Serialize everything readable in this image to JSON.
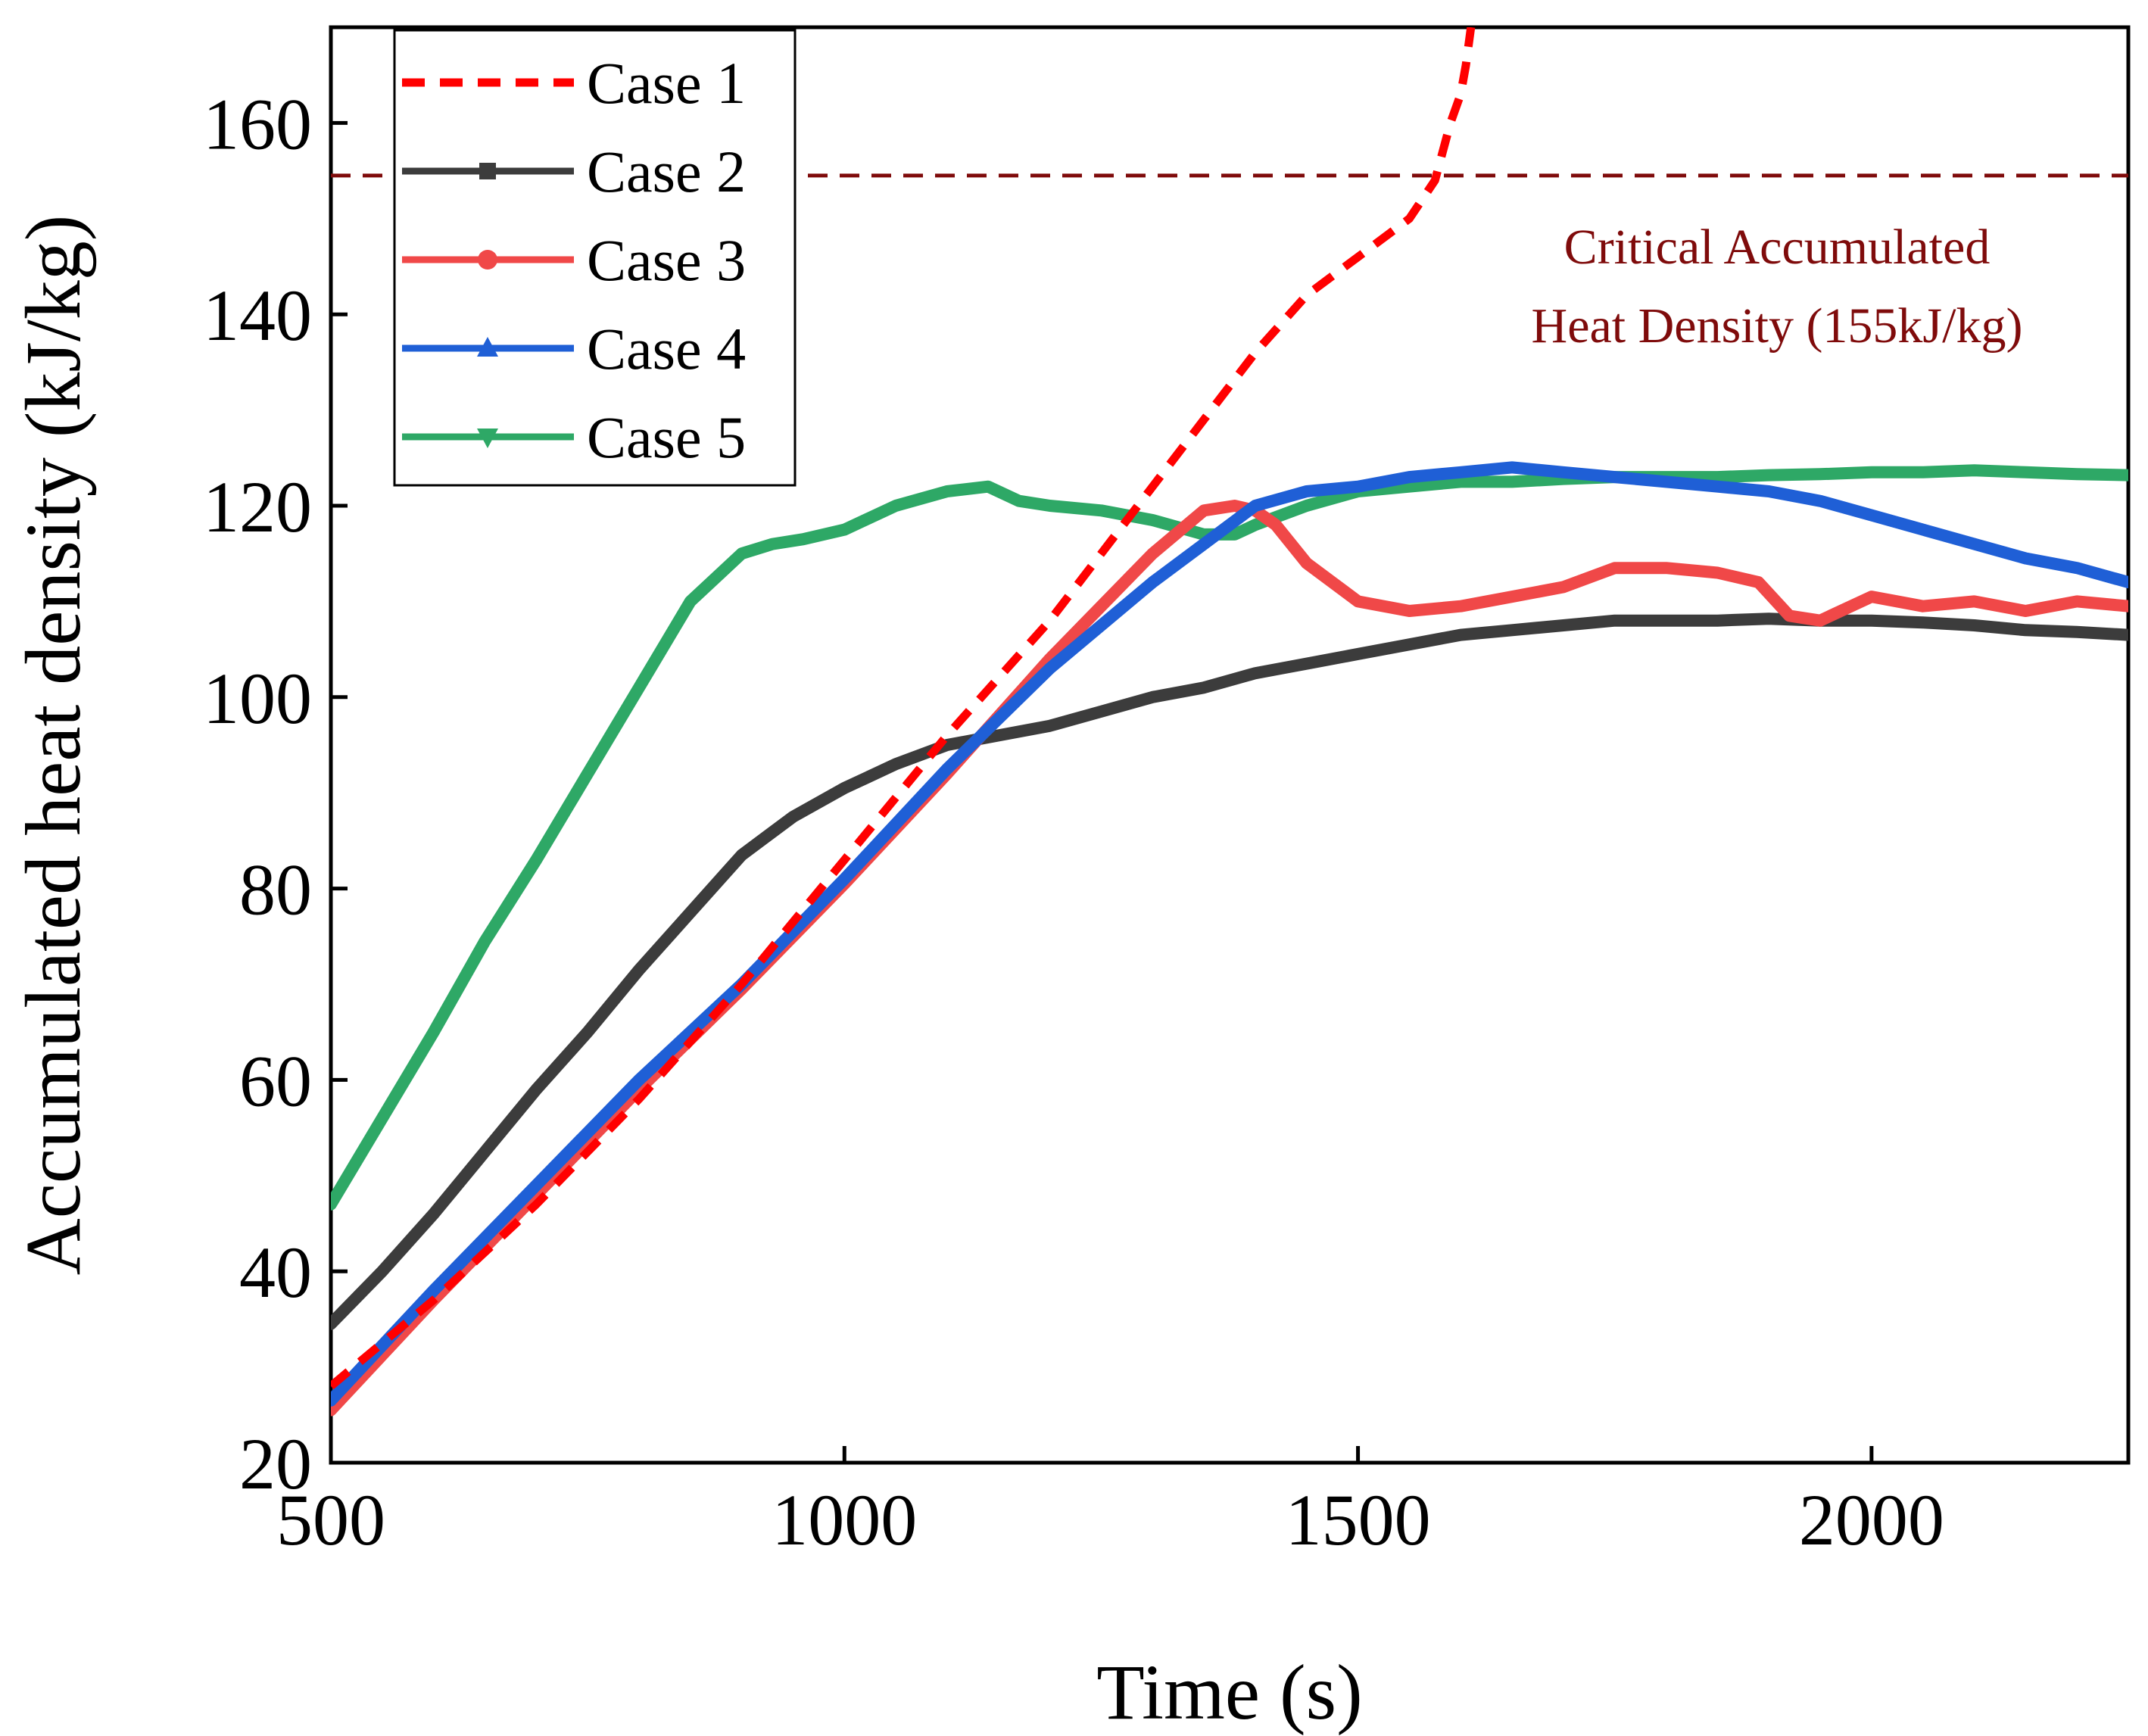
{
  "chart_data": {
    "type": "line",
    "title": "",
    "xlabel": "Time (s)",
    "ylabel": "Accumulated heat density (kJ/kg)",
    "xlim": [
      500,
      2250
    ],
    "ylim": [
      20,
      170
    ],
    "xticks": [
      500,
      1000,
      1500,
      2000
    ],
    "yticks": [
      20,
      40,
      60,
      80,
      100,
      120,
      140,
      160
    ],
    "legend_position": "top-left",
    "reference_line": {
      "y": 154.5,
      "color": "#7f0b0b",
      "label_line1": "Critical Accumulated",
      "label_line2": "Heat Density (155kJ/kg)"
    },
    "series": [
      {
        "name": "Case 1",
        "color": "#ff0000",
        "style": "dashed",
        "marker": "none",
        "x": [
          500,
          600,
          700,
          800,
          900,
          1000,
          1100,
          1200,
          1300,
          1350,
          1400,
          1450,
          1500,
          1550,
          1575,
          1590,
          1600,
          1605,
          1610
        ],
        "y": [
          28,
          37,
          47,
          58,
          70,
          83,
          96,
          108,
          122,
          129,
          136,
          142,
          146,
          150,
          154,
          160,
          163,
          166,
          170
        ]
      },
      {
        "name": "Case 2",
        "color": "#3c3c3c",
        "style": "solid",
        "marker": "square",
        "x": [
          500,
          550,
          600,
          650,
          700,
          750,
          800,
          850,
          900,
          950,
          1000,
          1050,
          1100,
          1150,
          1200,
          1250,
          1300,
          1350,
          1400,
          1450,
          1500,
          1550,
          1600,
          1650,
          1700,
          1750,
          1800,
          1850,
          1900,
          1950,
          2000,
          2050,
          2100,
          2150,
          2200,
          2250
        ],
        "y": [
          34.5,
          40,
          46,
          52.5,
          59,
          65,
          71.5,
          77.5,
          83.5,
          87.5,
          90.5,
          93,
          95,
          96,
          97,
          98.5,
          100,
          101,
          102.5,
          103.5,
          104.5,
          105.5,
          106.5,
          107,
          107.5,
          108,
          108,
          108,
          108.2,
          108,
          108,
          107.8,
          107.5,
          107,
          106.8,
          106.5
        ]
      },
      {
        "name": "Case 3",
        "color": "#f04848",
        "style": "solid",
        "marker": "circle",
        "x": [
          500,
          600,
          700,
          800,
          900,
          1000,
          1100,
          1200,
          1300,
          1350,
          1380,
          1400,
          1420,
          1450,
          1500,
          1550,
          1600,
          1650,
          1700,
          1750,
          1800,
          1850,
          1890,
          1920,
          1950,
          1980,
          2000,
          2050,
          2100,
          2150,
          2200,
          2250
        ],
        "y": [
          25.5,
          37,
          48,
          59,
          69.5,
          80.5,
          92,
          104,
          115,
          119.5,
          120,
          119.5,
          118,
          114,
          110,
          109,
          109.5,
          110.5,
          111.5,
          113.5,
          113.5,
          113,
          112,
          108.5,
          108,
          109.5,
          110.5,
          109.5,
          110,
          109,
          110,
          109.5
        ]
      },
      {
        "name": "Case 4",
        "color": "#1f5fd6",
        "style": "solid",
        "marker": "triangle-up",
        "x": [
          500,
          600,
          700,
          800,
          900,
          1000,
          1100,
          1200,
          1300,
          1350,
          1400,
          1450,
          1500,
          1550,
          1600,
          1650,
          1700,
          1750,
          1800,
          1850,
          1900,
          1950,
          2000,
          2050,
          2100,
          2150,
          2200,
          2250
        ],
        "y": [
          26.5,
          38,
          49,
          60,
          70,
          81,
          92.5,
          103,
          112,
          116,
          120,
          121.5,
          122,
          123,
          123.5,
          124,
          123.5,
          123,
          122.5,
          122,
          121.5,
          120.5,
          119,
          117.5,
          116,
          114.5,
          113.5,
          112
        ]
      },
      {
        "name": "Case 5",
        "color": "#2ea866",
        "style": "solid",
        "marker": "triangle-down",
        "x": [
          500,
          550,
          600,
          650,
          700,
          750,
          800,
          850,
          900,
          930,
          960,
          1000,
          1050,
          1100,
          1140,
          1170,
          1200,
          1250,
          1300,
          1350,
          1380,
          1400,
          1450,
          1500,
          1550,
          1600,
          1650,
          1700,
          1750,
          1800,
          1850,
          1900,
          1950,
          2000,
          2050,
          2100,
          2150,
          2200,
          2250
        ],
        "y": [
          47,
          56,
          65,
          74.5,
          83,
          92,
          101,
          110,
          115,
          116,
          116.5,
          117.5,
          120,
          121.5,
          122,
          120.5,
          120,
          119.5,
          118.5,
          117,
          117,
          118,
          120,
          121.5,
          122,
          122.5,
          122.5,
          122.8,
          123,
          123,
          123,
          123.2,
          123.3,
          123.5,
          123.5,
          123.7,
          123.5,
          123.3,
          123.2
        ]
      }
    ]
  }
}
